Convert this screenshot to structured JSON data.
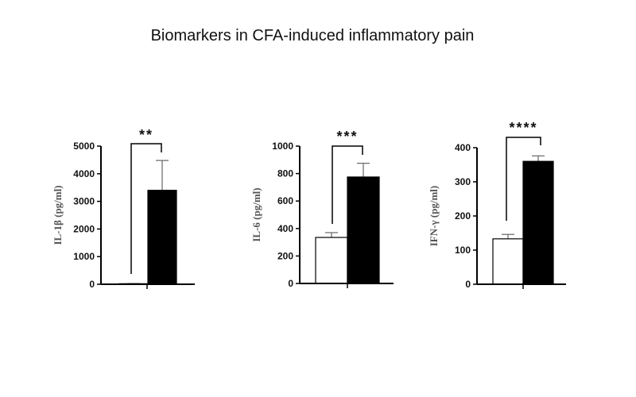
{
  "title": "Biomarkers in CFA-induced inflammatory pain",
  "chart_data": [
    {
      "type": "bar",
      "ylabel": "IL-1β (pg/ml)",
      "ylim": [
        0,
        5000
      ],
      "yticks": [
        "0",
        "1000",
        "2000",
        "3000",
        "4000",
        "5000"
      ],
      "values": [
        20,
        3400
      ],
      "errors": [
        5,
        1080
      ],
      "fill_colors": [
        "#ffffff",
        "#000000"
      ],
      "significance": "**"
    },
    {
      "type": "bar",
      "ylabel": "IL-6 (pg/ml)",
      "ylim": [
        0,
        1000
      ],
      "yticks": [
        "0",
        "200",
        "400",
        "600",
        "800",
        "1000"
      ],
      "values": [
        335,
        775
      ],
      "errors": [
        35,
        100
      ],
      "fill_colors": [
        "#ffffff",
        "#000000"
      ],
      "significance": "***"
    },
    {
      "type": "bar",
      "ylabel": "IFN-γ (pg/ml)",
      "ylim": [
        0,
        400
      ],
      "yticks": [
        "0",
        "100",
        "200",
        "300",
        "400"
      ],
      "values": [
        133,
        360
      ],
      "errors": [
        13,
        16
      ],
      "fill_colors": [
        "#ffffff",
        "#000000"
      ],
      "significance": "****"
    }
  ]
}
